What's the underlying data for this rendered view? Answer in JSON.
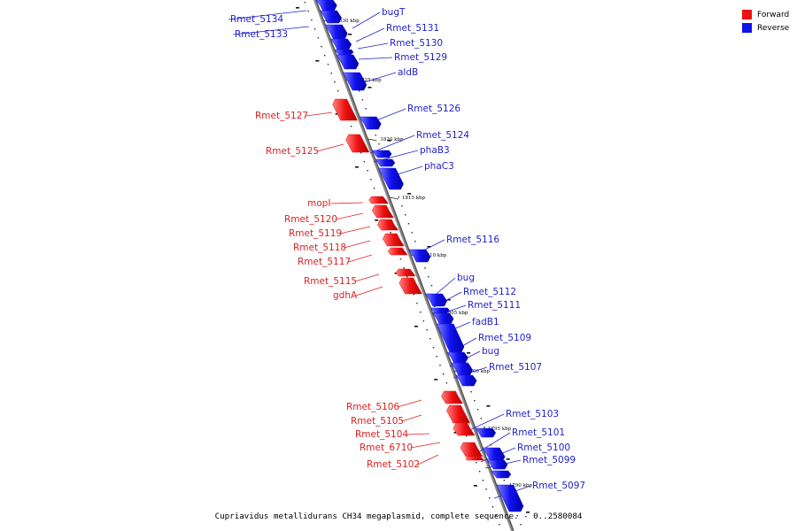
{
  "caption": "Cupriavidus metallidurans CH34 megaplasmid, complete sequence. - 0..2580084",
  "legend": {
    "forward": {
      "label": "Forward",
      "color": "#ee1111"
    },
    "reverse": {
      "label": "Reverse",
      "color": "#1111ee"
    }
  },
  "colors": {
    "forward_line": "#dd2222",
    "reverse_line": "#2222cc",
    "backbone": "#8a8a8a"
  },
  "ticks": [
    {
      "label": "1830 kbp"
    },
    {
      "label": "1825 kbp"
    },
    {
      "label": "1820 kbp"
    },
    {
      "label": "1815 kbp"
    },
    {
      "label": "1810 kbp"
    },
    {
      "label": "1805 kbp"
    },
    {
      "label": "1800 kbp"
    },
    {
      "label": "1795 kbp"
    },
    {
      "label": "1790 kbp"
    }
  ],
  "genes": [
    {
      "name": "Rmet_5134",
      "strand": "reverse"
    },
    {
      "name": "Rmet_5133",
      "strand": "reverse"
    },
    {
      "name": "bugT",
      "strand": "reverse"
    },
    {
      "name": "Rmet_5131",
      "strand": "reverse"
    },
    {
      "name": "Rmet_5130",
      "strand": "reverse"
    },
    {
      "name": "Rmet_5129",
      "strand": "reverse"
    },
    {
      "name": "aldB",
      "strand": "reverse"
    },
    {
      "name": "Rmet_5127",
      "strand": "forward"
    },
    {
      "name": "Rmet_5126",
      "strand": "reverse"
    },
    {
      "name": "Rmet_5125",
      "strand": "forward"
    },
    {
      "name": "Rmet_5124",
      "strand": "reverse"
    },
    {
      "name": "phaB3",
      "strand": "reverse"
    },
    {
      "name": "phaC3",
      "strand": "reverse"
    },
    {
      "name": "mopI",
      "strand": "forward"
    },
    {
      "name": "Rmet_5120",
      "strand": "forward"
    },
    {
      "name": "Rmet_5119",
      "strand": "forward"
    },
    {
      "name": "Rmet_5118",
      "strand": "forward"
    },
    {
      "name": "Rmet_5117",
      "strand": "forward"
    },
    {
      "name": "Rmet_5116",
      "strand": "reverse"
    },
    {
      "name": "Rmet_5115",
      "strand": "forward"
    },
    {
      "name": "gdhA",
      "strand": "forward"
    },
    {
      "name": "bug",
      "strand": "reverse"
    },
    {
      "name": "Rmet_5112",
      "strand": "reverse"
    },
    {
      "name": "Rmet_5111",
      "strand": "reverse"
    },
    {
      "name": "fadB1",
      "strand": "reverse"
    },
    {
      "name": "Rmet_5109",
      "strand": "reverse"
    },
    {
      "name": "bug",
      "strand": "reverse"
    },
    {
      "name": "Rmet_5107",
      "strand": "reverse"
    },
    {
      "name": "Rmet_5106",
      "strand": "forward"
    },
    {
      "name": "Rmet_5105",
      "strand": "forward"
    },
    {
      "name": "Rmet_5104",
      "strand": "forward"
    },
    {
      "name": "Rmet_6710",
      "strand": "forward"
    },
    {
      "name": "Rmet_5102",
      "strand": "forward"
    },
    {
      "name": "Rmet_5103",
      "strand": "reverse"
    },
    {
      "name": "Rmet_5101",
      "strand": "reverse"
    },
    {
      "name": "Rmet_5100",
      "strand": "reverse"
    },
    {
      "name": "Rmet_5099",
      "strand": "reverse"
    },
    {
      "name": "Rmet_5097",
      "strand": "reverse"
    }
  ]
}
